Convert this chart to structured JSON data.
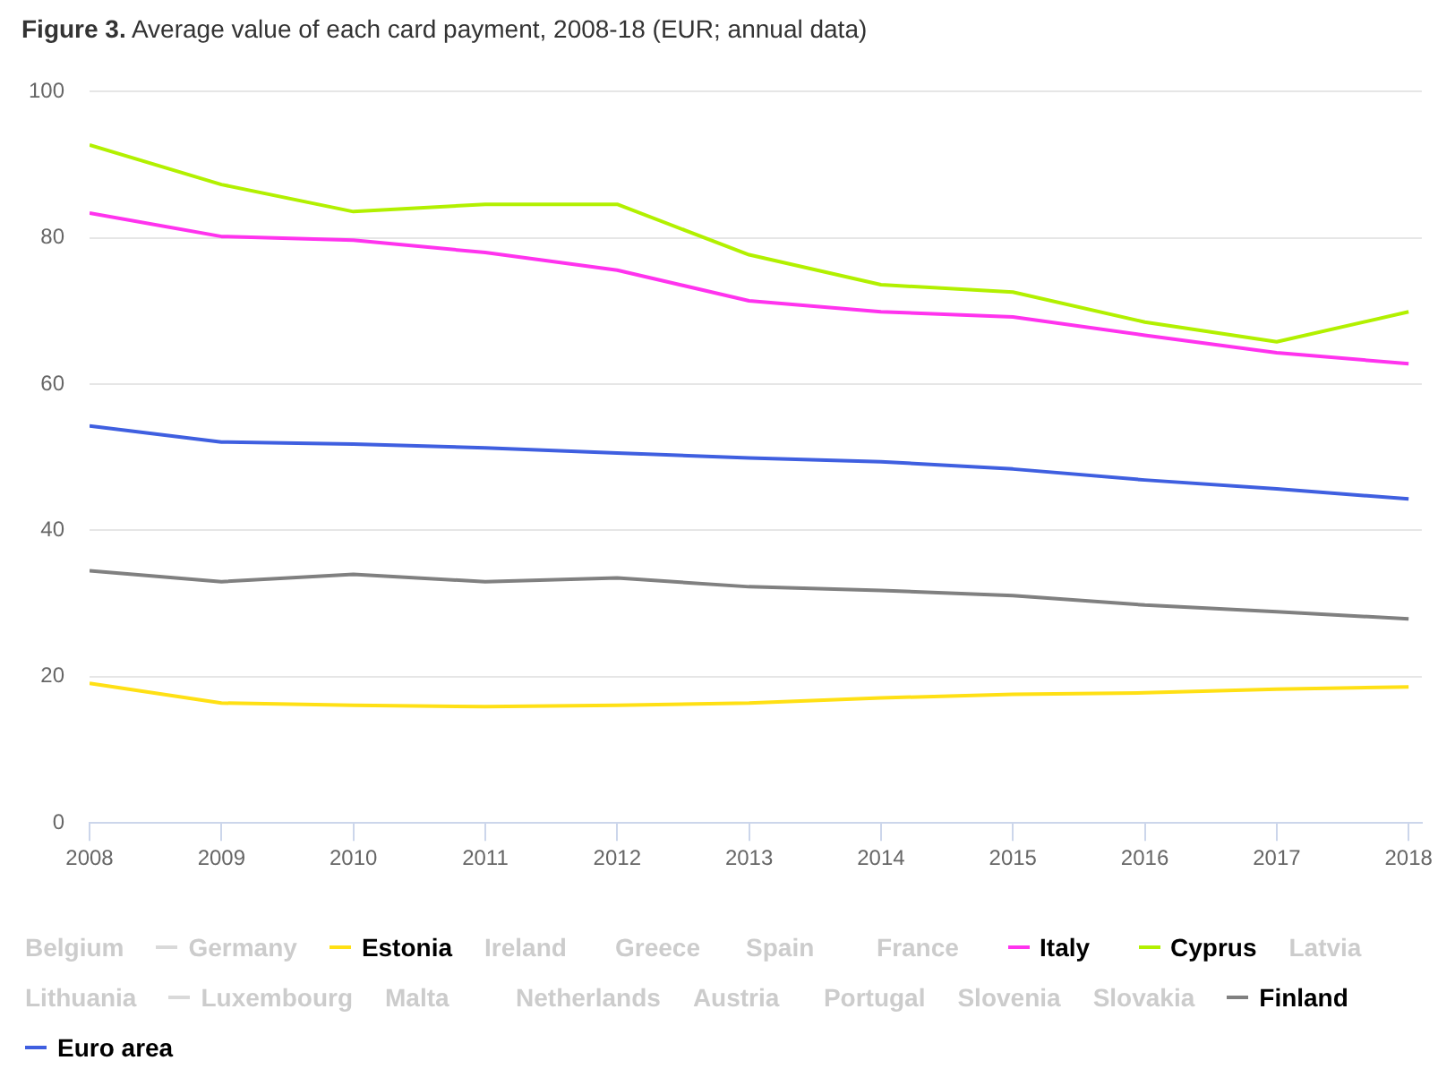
{
  "chart_data": {
    "type": "line",
    "title": "Figure 3. Average value of each card payment, 2008-18 (EUR; annual data)",
    "x": [
      2008,
      2009,
      2010,
      2011,
      2012,
      2013,
      2014,
      2015,
      2016,
      2017,
      2018
    ],
    "xlim": [
      2008,
      2018.1
    ],
    "xticks": [
      2008,
      2009,
      2010,
      2011,
      2012,
      2013,
      2014,
      2015,
      2016,
      2017,
      2018
    ],
    "ylim": [
      0,
      100
    ],
    "yticks": [
      0,
      20,
      40,
      60,
      80,
      100
    ],
    "grid": "y",
    "legend": "bottom",
    "marker": "none",
    "line_style": "solid",
    "series": [
      {
        "name": "Belgium",
        "values": [
          null,
          null,
          null,
          null,
          null,
          null,
          null,
          null,
          null,
          null,
          null
        ]
      },
      {
        "name": "Germany",
        "color": "#d9d9d9",
        "values": [
          null,
          null,
          null,
          null,
          null,
          null,
          null,
          null,
          null,
          null,
          null
        ]
      },
      {
        "name": "Estonia",
        "color": "#ffe014",
        "values": [
          19.1,
          16.4,
          16.1,
          15.9,
          16.1,
          16.4,
          17.1,
          17.6,
          17.8,
          18.3,
          18.6
        ]
      },
      {
        "name": "Ireland",
        "values": [
          null,
          null,
          null,
          null,
          null,
          null,
          null,
          null,
          null,
          null,
          null
        ]
      },
      {
        "name": "Greece",
        "values": [
          null,
          null,
          null,
          null,
          null,
          null,
          null,
          null,
          null,
          null,
          null
        ]
      },
      {
        "name": "Spain",
        "values": [
          null,
          null,
          null,
          null,
          null,
          null,
          null,
          null,
          null,
          null,
          null
        ]
      },
      {
        "name": "France",
        "values": [
          null,
          null,
          null,
          null,
          null,
          null,
          null,
          null,
          null,
          null,
          null
        ]
      },
      {
        "name": "Italy",
        "color": "#ff33ee",
        "values": [
          83.4,
          80.2,
          79.7,
          78.0,
          75.6,
          71.4,
          69.9,
          69.2,
          66.7,
          64.3,
          62.8
        ]
      },
      {
        "name": "Cyprus",
        "color": "#b2f000",
        "values": [
          92.7,
          87.3,
          83.6,
          84.6,
          84.6,
          77.7,
          73.6,
          72.6,
          68.5,
          65.8,
          69.9
        ]
      },
      {
        "name": "Latvia",
        "values": [
          null,
          null,
          null,
          null,
          null,
          null,
          null,
          null,
          null,
          null,
          null
        ]
      },
      {
        "name": "Lithuania",
        "values": [
          null,
          null,
          null,
          null,
          null,
          null,
          null,
          null,
          null,
          null,
          null
        ]
      },
      {
        "name": "Luxembourg",
        "color": "#d9d9d9",
        "values": [
          null,
          null,
          null,
          null,
          null,
          null,
          null,
          null,
          null,
          null,
          null
        ]
      },
      {
        "name": "Malta",
        "values": [
          null,
          null,
          null,
          null,
          null,
          null,
          null,
          null,
          null,
          null,
          null
        ]
      },
      {
        "name": "Netherlands",
        "values": [
          null,
          null,
          null,
          null,
          null,
          null,
          null,
          null,
          null,
          null,
          null
        ]
      },
      {
        "name": "Austria",
        "values": [
          null,
          null,
          null,
          null,
          null,
          null,
          null,
          null,
          null,
          null,
          null
        ]
      },
      {
        "name": "Portugal",
        "values": [
          null,
          null,
          null,
          null,
          null,
          null,
          null,
          null,
          null,
          null,
          null
        ]
      },
      {
        "name": "Slovenia",
        "values": [
          null,
          null,
          null,
          null,
          null,
          null,
          null,
          null,
          null,
          null,
          null
        ]
      },
      {
        "name": "Slovakia",
        "values": [
          null,
          null,
          null,
          null,
          null,
          null,
          null,
          null,
          null,
          null,
          null
        ]
      },
      {
        "name": "Finland",
        "color": "#808080",
        "values": [
          34.5,
          33.0,
          34.0,
          33.0,
          33.5,
          32.3,
          31.8,
          31.1,
          29.8,
          28.9,
          27.9
        ]
      },
      {
        "name": "Euro area",
        "color": "#3f5fe0",
        "values": [
          54.3,
          52.1,
          51.8,
          51.3,
          50.6,
          49.9,
          49.4,
          48.4,
          46.9,
          45.7,
          44.3
        ]
      }
    ]
  }
}
